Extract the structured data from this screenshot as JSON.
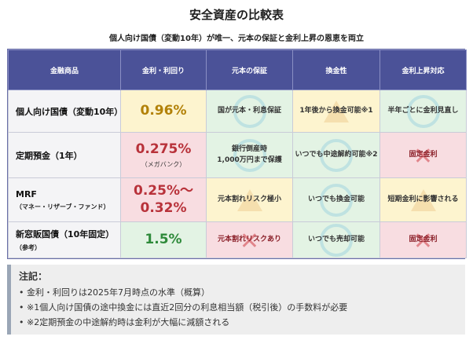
{
  "page": {
    "title": "安全資産の比較表",
    "subtitle": "個人向け国債（変動10年）が唯一、元本の保証と金利上昇の恩恵を両立"
  },
  "table": {
    "headers": [
      "金融商品",
      "金利・利回り",
      "元本の保証",
      "換金性",
      "金利上昇対応"
    ],
    "rows": [
      {
        "name": "個人向け国債（変動10年）",
        "name_sub": "",
        "rate": "0.96%",
        "rate_sub": "",
        "principal": "国が元本・利息保証",
        "liquidity": "1年後から換金可能※1",
        "rate_rise": "半年ごとに金利見直し"
      },
      {
        "name": "定期預金（1年）",
        "name_sub": "",
        "rate": "0.275%",
        "rate_sub": "（メガバンク）",
        "principal_line1": "銀行倒産時",
        "principal_line2": "1,000万円まで保護",
        "liquidity": "いつでも中途解約可能※2",
        "rate_rise": "固定金利"
      },
      {
        "name": "MRF",
        "name_sub": "（マネー・リザーブ・ファンド）",
        "rate_line1": "0.25%～",
        "rate_line2": "0.32%",
        "principal": "元本割れリスク極小",
        "liquidity": "いつでも換金可能",
        "rate_rise": "短期金利に影響される"
      },
      {
        "name": "新窓販国債（10年固定）",
        "name_sub": "（参考）",
        "rate": "1.5%",
        "principal": "元本割れリスクあり",
        "liquidity": "いつでも売却可能",
        "rate_rise": "固定金利"
      }
    ]
  },
  "notes": {
    "title": "注記：",
    "items": [
      "• 金利・利回りは2025年7月時点の水準（概算）",
      "• ※1個人向け国債の途中換金には直近2回分の利息相当額（税引後）の手数料が必要",
      "• ※2定期預金の中途解約時は金利が大幅に減額される"
    ]
  },
  "colors": {
    "header": "#4b5298",
    "good": "#e3f3e4",
    "neutral": "#fdf4cf",
    "info": "#e2ecf8",
    "bad": "#f8dde1"
  },
  "icons": {
    "good": "circle-mark",
    "neutral": "triangle-mark",
    "bad": "cross-mark"
  }
}
